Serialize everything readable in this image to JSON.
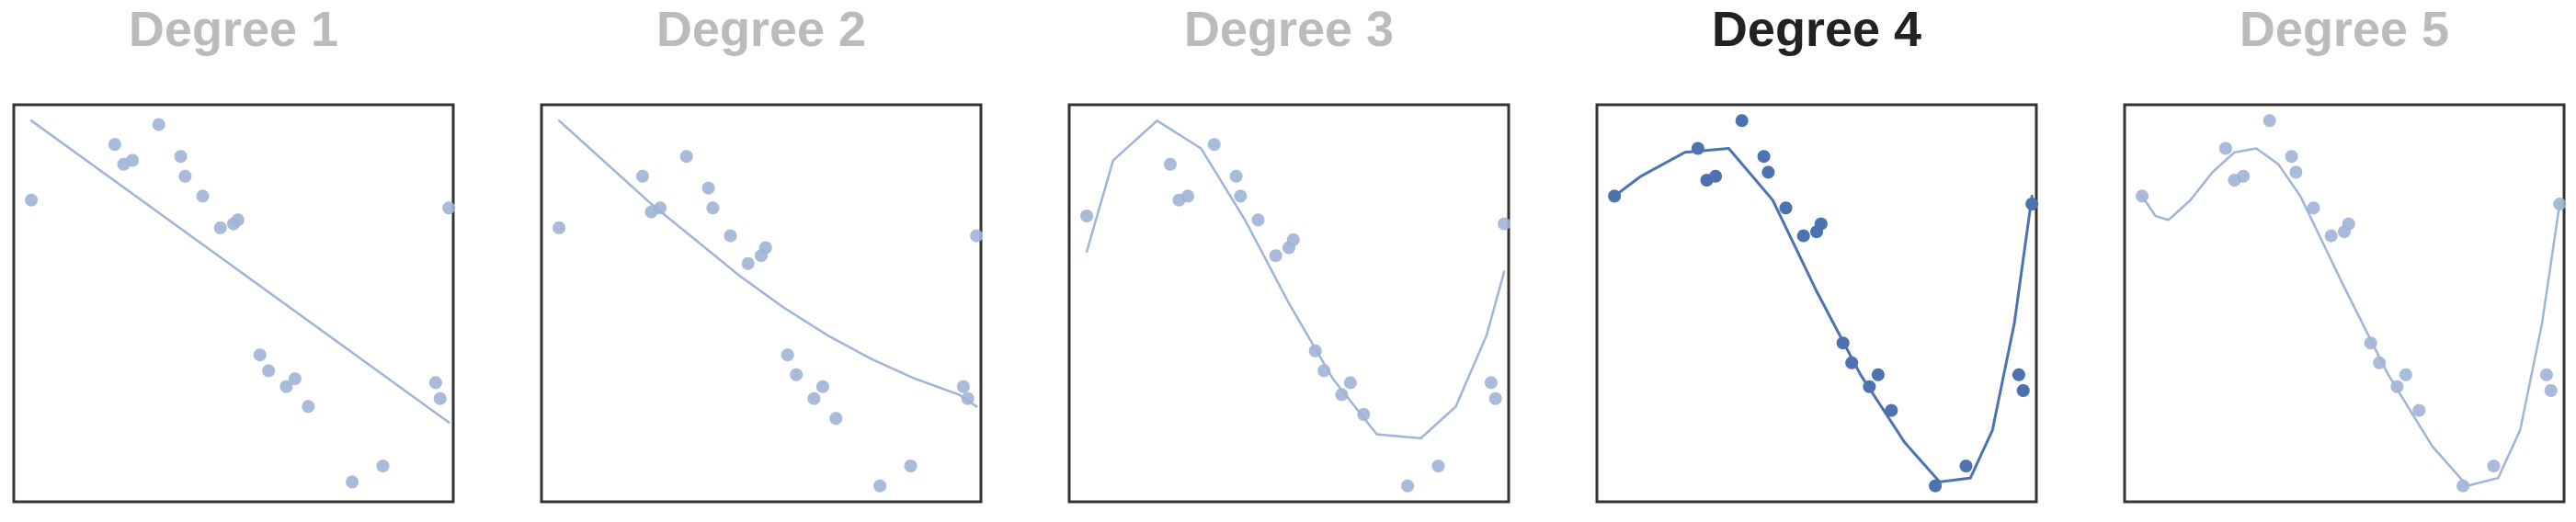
{
  "chart_data": [
    {
      "type": "scatter",
      "title": "Degree 1",
      "active": false,
      "xlabel": "",
      "ylabel": "",
      "xlim": [
        0,
        1
      ],
      "ylim": [
        0,
        1
      ],
      "axes_ticks": false,
      "grid": false,
      "points": {
        "x": [
          0.04,
          0.23,
          0.25,
          0.27,
          0.33,
          0.38,
          0.39,
          0.43,
          0.47,
          0.5,
          0.51,
          0.56,
          0.58,
          0.62,
          0.64,
          0.67,
          0.77,
          0.84,
          0.96,
          0.97,
          0.99
        ],
        "y": [
          0.76,
          0.9,
          0.85,
          0.86,
          0.95,
          0.87,
          0.82,
          0.77,
          0.69,
          0.7,
          0.71,
          0.37,
          0.33,
          0.29,
          0.31,
          0.24,
          0.05,
          0.09,
          0.3,
          0.26,
          0.74
        ]
      },
      "fit": {
        "degree": 1,
        "x": [
          0.04,
          0.99
        ],
        "y": [
          0.96,
          0.2
        ]
      }
    },
    {
      "type": "scatter",
      "title": "Degree 2",
      "active": false,
      "xlabel": "",
      "ylabel": "",
      "xlim": [
        0,
        1
      ],
      "ylim": [
        0,
        1
      ],
      "axes_ticks": false,
      "grid": false,
      "points": {
        "x": [
          0.04,
          0.23,
          0.25,
          0.27,
          0.33,
          0.38,
          0.39,
          0.43,
          0.47,
          0.5,
          0.51,
          0.56,
          0.58,
          0.62,
          0.64,
          0.67,
          0.77,
          0.84,
          0.96,
          0.97,
          0.99
        ],
        "y": [
          0.69,
          0.82,
          0.73,
          0.74,
          0.87,
          0.79,
          0.74,
          0.67,
          0.6,
          0.62,
          0.64,
          0.37,
          0.32,
          0.26,
          0.29,
          0.21,
          0.04,
          0.09,
          0.29,
          0.26,
          0.67
        ]
      },
      "fit": {
        "degree": 2,
        "x": [
          0.04,
          0.15,
          0.25,
          0.35,
          0.45,
          0.55,
          0.65,
          0.75,
          0.85,
          0.95,
          0.99
        ],
        "y": [
          0.96,
          0.85,
          0.75,
          0.66,
          0.57,
          0.49,
          0.42,
          0.36,
          0.31,
          0.27,
          0.24
        ]
      }
    },
    {
      "type": "scatter",
      "title": "Degree 3",
      "active": false,
      "xlabel": "",
      "ylabel": "",
      "xlim": [
        0,
        1
      ],
      "ylim": [
        0,
        1
      ],
      "axes_ticks": false,
      "grid": false,
      "points": {
        "x": [
          0.04,
          0.23,
          0.25,
          0.27,
          0.33,
          0.38,
          0.39,
          0.43,
          0.47,
          0.5,
          0.51,
          0.56,
          0.58,
          0.62,
          0.64,
          0.67,
          0.77,
          0.84,
          0.96,
          0.97,
          0.99
        ],
        "y": [
          0.72,
          0.85,
          0.76,
          0.77,
          0.9,
          0.82,
          0.77,
          0.71,
          0.62,
          0.64,
          0.66,
          0.38,
          0.33,
          0.27,
          0.3,
          0.22,
          0.04,
          0.09,
          0.3,
          0.26,
          0.7
        ]
      },
      "fit": {
        "degree": 3,
        "x": [
          0.04,
          0.1,
          0.2,
          0.3,
          0.4,
          0.5,
          0.6,
          0.7,
          0.8,
          0.88,
          0.95,
          0.99
        ],
        "y": [
          0.63,
          0.86,
          0.96,
          0.89,
          0.71,
          0.5,
          0.31,
          0.17,
          0.16,
          0.24,
          0.42,
          0.58
        ]
      }
    },
    {
      "type": "scatter",
      "title": "Degree 4",
      "active": true,
      "xlabel": "",
      "ylabel": "",
      "xlim": [
        0,
        1
      ],
      "ylim": [
        0,
        1
      ],
      "axes_ticks": false,
      "grid": false,
      "points": {
        "x": [
          0.04,
          0.23,
          0.25,
          0.27,
          0.33,
          0.38,
          0.39,
          0.43,
          0.47,
          0.5,
          0.51,
          0.56,
          0.58,
          0.62,
          0.64,
          0.67,
          0.77,
          0.84,
          0.96,
          0.97,
          0.99
        ],
        "y": [
          0.77,
          0.89,
          0.81,
          0.82,
          0.96,
          0.87,
          0.83,
          0.74,
          0.67,
          0.68,
          0.7,
          0.4,
          0.35,
          0.29,
          0.32,
          0.23,
          0.04,
          0.09,
          0.32,
          0.28,
          0.75
        ]
      },
      "fit": {
        "degree": 4,
        "x": [
          0.04,
          0.1,
          0.2,
          0.3,
          0.4,
          0.5,
          0.6,
          0.7,
          0.78,
          0.85,
          0.9,
          0.95,
          0.99
        ],
        "y": [
          0.77,
          0.82,
          0.88,
          0.89,
          0.76,
          0.53,
          0.32,
          0.15,
          0.05,
          0.06,
          0.18,
          0.45,
          0.77
        ]
      }
    },
    {
      "type": "scatter",
      "title": "Degree 5",
      "active": false,
      "xlabel": "",
      "ylabel": "",
      "xlim": [
        0,
        1
      ],
      "ylim": [
        0,
        1
      ],
      "axes_ticks": false,
      "grid": false,
      "points": {
        "x": [
          0.04,
          0.23,
          0.25,
          0.27,
          0.33,
          0.38,
          0.39,
          0.43,
          0.47,
          0.5,
          0.51,
          0.56,
          0.58,
          0.62,
          0.64,
          0.67,
          0.77,
          0.84,
          0.96,
          0.97,
          0.99
        ],
        "y": [
          0.77,
          0.89,
          0.81,
          0.82,
          0.96,
          0.87,
          0.83,
          0.74,
          0.67,
          0.68,
          0.7,
          0.4,
          0.35,
          0.29,
          0.32,
          0.23,
          0.04,
          0.09,
          0.32,
          0.28,
          0.75
        ]
      },
      "fit": {
        "degree": 5,
        "x": [
          0.04,
          0.07,
          0.1,
          0.15,
          0.2,
          0.25,
          0.3,
          0.35,
          0.4,
          0.5,
          0.6,
          0.7,
          0.78,
          0.85,
          0.9,
          0.95,
          0.99
        ],
        "y": [
          0.77,
          0.72,
          0.71,
          0.76,
          0.83,
          0.88,
          0.89,
          0.85,
          0.77,
          0.54,
          0.32,
          0.14,
          0.04,
          0.06,
          0.18,
          0.45,
          0.75
        ]
      }
    }
  ],
  "colors": {
    "active_title": "#222222",
    "inactive_title": "#bbbbbb",
    "active_series": "#4c72b0",
    "inactive_series": "#9fb4d6",
    "frame": "#333333",
    "background": "#ffffff"
  }
}
